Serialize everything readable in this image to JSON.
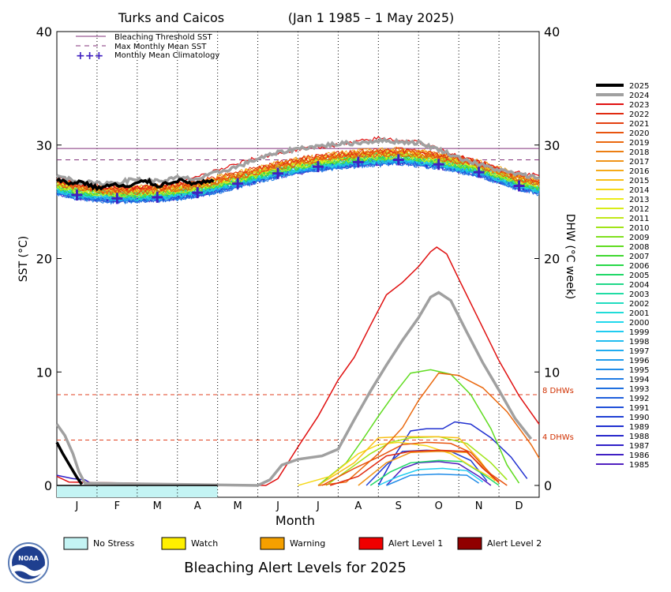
{
  "chart_data": {
    "type": "line",
    "title": "Turks and Caicos",
    "subtitle": "(Jan 1 1985 – 1 May 2025)",
    "xlabel": "Month",
    "ylabel_left": "SST (°C)",
    "ylabel_right": "DHW (°C week)",
    "x_ticks": [
      "J",
      "F",
      "M",
      "A",
      "M",
      "J",
      "J",
      "A",
      "S",
      "O",
      "N",
      "D"
    ],
    "ylim": [
      0,
      40
    ],
    "y_ticks": [
      0,
      10,
      20,
      30,
      40
    ],
    "grid": "vertical dotted month dividers",
    "legend_placement": "top-left",
    "legend": [
      {
        "label": "Bleaching Threshold SST",
        "style": "solid",
        "color": "#80307a"
      },
      {
        "label": "Max Monthly Mean SST",
        "style": "dashed",
        "color": "#80307a"
      },
      {
        "label": "Monthly Mean Climatology",
        "style": "crosses",
        "color": "#4020c0"
      }
    ],
    "bleaching_threshold_sst": 29.7,
    "max_monthly_mean_sst": 28.7,
    "dhw_reference_lines": [
      {
        "label": "8 DHWs",
        "value": 8
      },
      {
        "label": "4 DHWs",
        "value": 4
      }
    ],
    "climatology": [
      {
        "month": "Jan",
        "sst": 25.6
      },
      {
        "month": "Feb",
        "sst": 25.3
      },
      {
        "month": "Mar",
        "sst": 25.4
      },
      {
        "month": "Apr",
        "sst": 25.8
      },
      {
        "month": "May",
        "sst": 26.6
      },
      {
        "month": "Jun",
        "sst": 27.5
      },
      {
        "month": "Jul",
        "sst": 28.1
      },
      {
        "month": "Aug",
        "sst": 28.5
      },
      {
        "month": "Sep",
        "sst": 28.7
      },
      {
        "month": "Oct",
        "sst": 28.3
      },
      {
        "month": "Nov",
        "sst": 27.6
      },
      {
        "month": "Dec",
        "sst": 26.4
      }
    ],
    "years": [
      "2025",
      "2024",
      "2023",
      "2022",
      "2021",
      "2020",
      "2019",
      "2018",
      "2017",
      "2016",
      "2015",
      "2014",
      "2013",
      "2012",
      "2011",
      "2010",
      "2009",
      "2008",
      "2007",
      "2006",
      "2005",
      "2004",
      "2003",
      "2002",
      "2001",
      "2000",
      "1999",
      "1998",
      "1997",
      "1996",
      "1995",
      "1994",
      "1993",
      "1992",
      "1991",
      "1990",
      "1989",
      "1988",
      "1987",
      "1986",
      "1985"
    ],
    "year_colors": [
      "#000000",
      "#a0a0a0",
      "#e01010",
      "#e02a10",
      "#e43f10",
      "#e8540e",
      "#ea680e",
      "#ec7e12",
      "#f09418",
      "#f5aa18",
      "#f8c018",
      "#f5d818",
      "#ecec18",
      "#d8ec18",
      "#c0e818",
      "#a0e418",
      "#80e020",
      "#60dc20",
      "#40d830",
      "#28d848",
      "#20d868",
      "#20d888",
      "#20dca4",
      "#20dcc0",
      "#20dcd8",
      "#20d8ec",
      "#20ccf0",
      "#20bcf0",
      "#20acf0",
      "#209cec",
      "#208ce8",
      "#207ce4",
      "#2070e0",
      "#2060dc",
      "#2050d8",
      "#2040d4",
      "#2030d0",
      "#2828cc",
      "#3020c8",
      "#4020c4",
      "#5020c0"
    ],
    "sst_series": [
      {
        "name": "2025",
        "points": [
          [
            0,
            27.0
          ],
          [
            0.3,
            26.6
          ],
          [
            0.6,
            26.8
          ],
          [
            1.0,
            26.2
          ],
          [
            1.4,
            26.5
          ],
          [
            1.8,
            26.3
          ],
          [
            2.2,
            26.9
          ],
          [
            2.5,
            26.4
          ],
          [
            3.0,
            26.9
          ],
          [
            3.4,
            26.6
          ],
          [
            3.9,
            26.8
          ]
        ]
      },
      {
        "name": "2024",
        "points": [
          [
            0,
            27.3
          ],
          [
            0.5,
            26.8
          ],
          [
            1.0,
            26.6
          ],
          [
            1.5,
            26.7
          ],
          [
            2.0,
            27.0
          ],
          [
            2.5,
            26.8
          ],
          [
            3.0,
            27.1
          ],
          [
            3.5,
            27.0
          ],
          [
            4.0,
            27.6
          ],
          [
            4.5,
            28.1
          ],
          [
            5.0,
            28.8
          ],
          [
            5.5,
            29.3
          ],
          [
            6.0,
            29.7
          ],
          [
            6.5,
            29.9
          ],
          [
            7.0,
            30.1
          ],
          [
            7.5,
            30.2
          ],
          [
            8.0,
            30.4
          ],
          [
            8.5,
            30.3
          ],
          [
            9.0,
            30.2
          ],
          [
            9.5,
            29.6
          ],
          [
            10.0,
            28.9
          ],
          [
            10.5,
            28.3
          ],
          [
            11.0,
            27.8
          ],
          [
            11.5,
            27.4
          ],
          [
            12.0,
            27.1
          ]
        ]
      },
      {
        "name": "2023",
        "points": [
          [
            0,
            27.1
          ],
          [
            1.0,
            26.3
          ],
          [
            2.0,
            26.2
          ],
          [
            3.0,
            26.6
          ],
          [
            4.0,
            27.8
          ],
          [
            5.0,
            28.9
          ],
          [
            6.0,
            29.6
          ],
          [
            7.0,
            30.0
          ],
          [
            8.0,
            30.6
          ],
          [
            9.0,
            30.3
          ],
          [
            10.0,
            29.0
          ],
          [
            11.0,
            27.9
          ],
          [
            12.0,
            27.3
          ]
        ]
      }
    ],
    "dhw_series": [
      {
        "name": "2025",
        "points": [
          [
            0,
            3.8
          ],
          [
            0.15,
            2.8
          ],
          [
            0.35,
            1.6
          ],
          [
            0.5,
            0.7
          ],
          [
            0.62,
            0.1
          ]
        ]
      },
      {
        "name": "2024",
        "points": [
          [
            0,
            5.4
          ],
          [
            0.2,
            4.4
          ],
          [
            0.4,
            2.8
          ],
          [
            0.55,
            1.2
          ],
          [
            0.7,
            0.2
          ],
          [
            5.0,
            0
          ],
          [
            5.3,
            0.5
          ],
          [
            5.6,
            1.8
          ],
          [
            6.0,
            2.3
          ],
          [
            6.6,
            2.6
          ],
          [
            7.0,
            3.2
          ],
          [
            7.4,
            5.8
          ],
          [
            7.8,
            8.3
          ],
          [
            8.2,
            10.6
          ],
          [
            8.6,
            12.8
          ],
          [
            9.0,
            14.8
          ],
          [
            9.3,
            16.6
          ],
          [
            9.5,
            17.0
          ],
          [
            9.8,
            16.3
          ],
          [
            10.2,
            13.5
          ],
          [
            10.6,
            10.8
          ],
          [
            11.0,
            8.4
          ],
          [
            11.4,
            5.9
          ],
          [
            11.8,
            4.1
          ]
        ]
      },
      {
        "name": "2023",
        "points": [
          [
            0,
            0.8
          ],
          [
            0.3,
            0.3
          ],
          [
            5.2,
            0
          ],
          [
            5.5,
            0.6
          ],
          [
            6.0,
            3.4
          ],
          [
            6.5,
            6.1
          ],
          [
            7.0,
            9.3
          ],
          [
            7.4,
            11.3
          ],
          [
            7.8,
            14.1
          ],
          [
            8.2,
            16.8
          ],
          [
            8.6,
            17.9
          ],
          [
            9.0,
            19.3
          ],
          [
            9.3,
            20.6
          ],
          [
            9.45,
            21.0
          ],
          [
            9.7,
            20.4
          ],
          [
            10.0,
            18.2
          ],
          [
            10.5,
            14.6
          ],
          [
            11.0,
            11.0
          ],
          [
            11.5,
            7.9
          ],
          [
            12.0,
            5.4
          ]
        ]
      },
      {
        "name": "2022",
        "points": [
          [
            6.8,
            0
          ],
          [
            7.5,
            0.8
          ],
          [
            8.2,
            2.6
          ],
          [
            8.8,
            3.0
          ],
          [
            9.5,
            3.1
          ],
          [
            10.2,
            3.0
          ],
          [
            10.6,
            1.5
          ],
          [
            11.0,
            0.3
          ]
        ]
      },
      {
        "name": "2020",
        "points": [
          [
            6.6,
            0
          ],
          [
            7.4,
            1.5
          ],
          [
            8.0,
            2.5
          ],
          [
            8.6,
            3.6
          ],
          [
            9.2,
            3.8
          ],
          [
            9.8,
            3.7
          ],
          [
            10.3,
            2.9
          ],
          [
            10.8,
            1.0
          ],
          [
            11.2,
            0
          ]
        ]
      },
      {
        "name": "2019",
        "points": [
          [
            6.5,
            0
          ],
          [
            7.2,
            0.3
          ],
          [
            8.0,
            2.8
          ],
          [
            8.6,
            5.1
          ],
          [
            9.0,
            7.5
          ],
          [
            9.5,
            9.9
          ],
          [
            10.0,
            9.7
          ],
          [
            10.6,
            8.6
          ],
          [
            11.2,
            6.5
          ],
          [
            11.8,
            3.6
          ],
          [
            12.0,
            2.4
          ]
        ]
      },
      {
        "name": "2017",
        "points": [
          [
            7.5,
            0
          ],
          [
            8.2,
            2.0
          ],
          [
            8.8,
            2.9
          ],
          [
            9.5,
            3.0
          ],
          [
            10.2,
            2.9
          ],
          [
            10.7,
            1.3
          ],
          [
            11.0,
            0.2
          ]
        ]
      },
      {
        "name": "2015",
        "points": [
          [
            6.5,
            0
          ],
          [
            7.4,
            2.0
          ],
          [
            8.0,
            4.2
          ],
          [
            8.6,
            4.3
          ],
          [
            9.4,
            4.3
          ],
          [
            10.0,
            4.2
          ],
          [
            10.5,
            2.3
          ],
          [
            10.9,
            0.4
          ]
        ]
      },
      {
        "name": "2014",
        "points": [
          [
            6.0,
            0
          ],
          [
            6.8,
            0.8
          ],
          [
            7.5,
            2.8
          ],
          [
            8.0,
            3.6
          ],
          [
            8.5,
            3.8
          ],
          [
            9.2,
            3.5
          ],
          [
            9.8,
            2.8
          ],
          [
            10.4,
            1.5
          ],
          [
            11.0,
            0.3
          ]
        ]
      },
      {
        "name": "2010",
        "points": [
          [
            6.7,
            0
          ],
          [
            7.3,
            1.5
          ],
          [
            7.8,
            2.8
          ],
          [
            8.3,
            3.8
          ],
          [
            8.8,
            4.2
          ],
          [
            9.5,
            4.3
          ],
          [
            10.2,
            3.7
          ],
          [
            10.8,
            2.0
          ],
          [
            11.2,
            0.5
          ]
        ]
      },
      {
        "name": "2008",
        "points": [
          [
            6.5,
            0
          ],
          [
            7.2,
            2.0
          ],
          [
            7.6,
            4.0
          ],
          [
            8.0,
            6.1
          ],
          [
            8.4,
            8.1
          ],
          [
            8.8,
            9.9
          ],
          [
            9.3,
            10.2
          ],
          [
            9.8,
            9.8
          ],
          [
            10.3,
            8.0
          ],
          [
            10.8,
            5.0
          ],
          [
            11.2,
            1.8
          ],
          [
            11.5,
            0.2
          ]
        ]
      },
      {
        "name": "2005",
        "points": [
          [
            7.8,
            0
          ],
          [
            8.3,
            1.2
          ],
          [
            8.8,
            2.0
          ],
          [
            9.5,
            2.2
          ],
          [
            10.1,
            2.1
          ],
          [
            10.6,
            1.0
          ],
          [
            11.0,
            0
          ]
        ]
      },
      {
        "name": "1999",
        "points": [
          [
            8.0,
            0
          ],
          [
            8.5,
            0.8
          ],
          [
            9.0,
            1.4
          ],
          [
            9.6,
            1.5
          ],
          [
            10.2,
            1.3
          ],
          [
            10.6,
            0.3
          ]
        ]
      },
      {
        "name": "1995",
        "points": [
          [
            8.2,
            0
          ],
          [
            8.8,
            0.9
          ],
          [
            9.5,
            1.0
          ],
          [
            10.2,
            0.9
          ],
          [
            10.5,
            0.2
          ]
        ]
      },
      {
        "name": "1990",
        "points": [
          [
            7.7,
            0
          ],
          [
            8.2,
            1.8
          ],
          [
            8.6,
            3.0
          ],
          [
            9.2,
            3.1
          ],
          [
            9.8,
            3.0
          ],
          [
            10.3,
            2.2
          ],
          [
            10.7,
            0.4
          ]
        ]
      },
      {
        "name": "1989",
        "points": [
          [
            8.0,
            0
          ],
          [
            8.4,
            2.6
          ],
          [
            8.8,
            4.8
          ],
          [
            9.2,
            5.0
          ],
          [
            9.6,
            5.0
          ],
          [
            9.9,
            5.6
          ],
          [
            10.3,
            5.4
          ],
          [
            10.8,
            4.2
          ],
          [
            11.3,
            2.5
          ],
          [
            11.7,
            0.6
          ]
        ]
      },
      {
        "name": "1987",
        "points": [
          [
            0,
            0.9
          ],
          [
            0.4,
            0.6
          ],
          [
            0.7,
            0.5
          ],
          [
            0.9,
            0.1
          ]
        ]
      },
      {
        "name": "1985",
        "points": [
          [
            8.2,
            0
          ],
          [
            8.6,
            1.5
          ],
          [
            9.0,
            2.0
          ],
          [
            9.5,
            2.1
          ],
          [
            10.0,
            1.9
          ],
          [
            10.5,
            0.8
          ],
          [
            10.8,
            0
          ]
        ]
      }
    ],
    "month_boundaries": [
      1,
      2,
      3,
      4,
      5,
      6,
      7,
      8,
      9,
      10,
      11
    ],
    "no_stress_until_month": 4.0
  },
  "alert_legend": {
    "title": "Bleaching Alert Levels for 2025",
    "items": [
      {
        "label": "No Stress",
        "color": "#c4f4f4"
      },
      {
        "label": "Watch",
        "color": "#fff000"
      },
      {
        "label": "Warning",
        "color": "#f5a000"
      },
      {
        "label": "Alert Level 1",
        "color": "#f00000"
      },
      {
        "label": "Alert Level 2",
        "color": "#900000"
      }
    ]
  },
  "logo": {
    "text": "NOAA"
  }
}
